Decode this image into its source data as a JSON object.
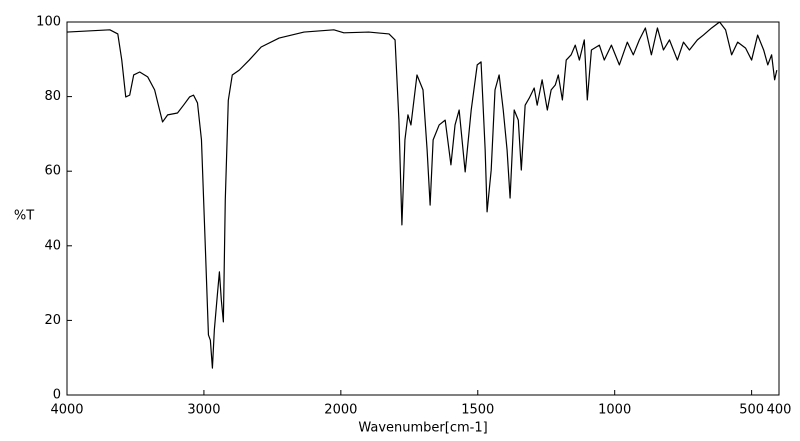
{
  "chart_data": {
    "type": "line",
    "xlabel": "Wavenumber[cm-1]",
    "ylabel": "%T",
    "xlim": [
      4000,
      400
    ],
    "ylim": [
      0,
      100
    ],
    "xticks": [
      4000,
      3000,
      2000,
      1500,
      1000,
      500,
      400
    ],
    "yticks": [
      0,
      20,
      40,
      60,
      80,
      100
    ],
    "x_scale_break": 2000,
    "x_scale_ratio": 2,
    "grid": false,
    "color": "#000000",
    "x": [
      4000,
      3687,
      3629,
      3600,
      3571,
      3542,
      3513,
      3469,
      3411,
      3360,
      3324,
      3302,
      3265,
      3193,
      3149,
      3105,
      3076,
      3047,
      3018,
      2989,
      2967,
      2953,
      2938,
      2924,
      2902,
      2887,
      2873,
      2858,
      2844,
      2822,
      2793,
      2742,
      2669,
      2582,
      2451,
      2269,
      2051,
      1989,
      1898,
      1824,
      1802,
      1788,
      1777,
      1766,
      1755,
      1744,
      1722,
      1700,
      1685,
      1674,
      1663,
      1641,
      1619,
      1598,
      1583,
      1568,
      1546,
      1524,
      1502,
      1488,
      1473,
      1466,
      1451,
      1437,
      1422,
      1407,
      1393,
      1382,
      1367,
      1352,
      1341,
      1327,
      1312,
      1294,
      1283,
      1265,
      1246,
      1232,
      1217,
      1206,
      1191,
      1177,
      1159,
      1144,
      1129,
      1111,
      1100,
      1085,
      1056,
      1038,
      1012,
      983,
      954,
      932,
      910,
      888,
      866,
      844,
      822,
      800,
      771,
      749,
      727,
      698,
      676,
      646,
      617,
      595,
      573,
      551,
      522,
      500,
      478,
      456,
      441,
      427,
      416,
      408
    ],
    "values": [
      97.3,
      97.9,
      96.8,
      89.8,
      79.9,
      80.4,
      85.8,
      86.6,
      85.3,
      81.8,
      76.4,
      73.2,
      75.1,
      75.6,
      77.7,
      79.9,
      80.4,
      78.3,
      68.4,
      38.9,
      16.1,
      14.7,
      7.2,
      17.4,
      26.8,
      33.0,
      25.5,
      19.6,
      52.3,
      79.0,
      85.8,
      87.1,
      89.8,
      93.3,
      95.7,
      97.3,
      97.9,
      97.1,
      97.3,
      96.8,
      95.2,
      73.7,
      45.6,
      68.4,
      75.1,
      72.4,
      85.8,
      81.8,
      65.7,
      50.9,
      68.4,
      72.4,
      73.7,
      61.7,
      72.4,
      76.4,
      59.8,
      76.4,
      88.5,
      89.3,
      65.7,
      49.1,
      60.3,
      81.8,
      85.8,
      76.4,
      65.7,
      52.8,
      76.4,
      73.7,
      60.3,
      77.7,
      79.6,
      82.3,
      77.7,
      84.5,
      76.4,
      81.8,
      83.1,
      85.8,
      79.1,
      89.8,
      91.2,
      93.8,
      89.8,
      95.2,
      79.1,
      92.5,
      93.8,
      89.8,
      93.8,
      88.5,
      94.6,
      91.2,
      95.2,
      98.4,
      91.2,
      98.4,
      92.5,
      95.2,
      89.8,
      94.6,
      92.5,
      95.2,
      96.5,
      98.4,
      100.0,
      97.9,
      91.2,
      94.6,
      93.0,
      89.8,
      96.5,
      92.5,
      88.5,
      91.2,
      84.5,
      87.1
    ]
  }
}
